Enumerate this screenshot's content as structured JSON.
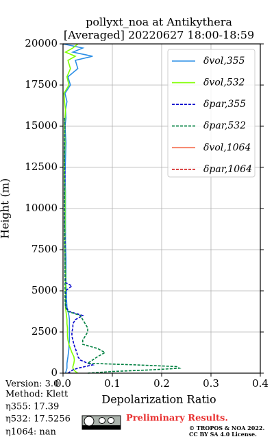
{
  "chart_data": {
    "type": "profile",
    "title": "pollyxt_noa at Antikythera",
    "subtitle": "[Averaged] 20220627 18:00-18:59",
    "x_label": "Depolarization Ratio",
    "y_label": "Height (m)",
    "y": [
      0,
      100,
      200,
      300,
      400,
      500,
      600,
      800,
      1000,
      1250,
      1500,
      1750,
      2000,
      2250,
      2500,
      2750,
      3000,
      3250,
      3500,
      3750,
      4000,
      4500,
      5000,
      5300,
      5500,
      6000,
      7000,
      8000,
      9000,
      10000,
      11000,
      12000,
      13000,
      14000,
      15000,
      15500,
      16000,
      16500,
      17000,
      17500,
      18000,
      18500,
      19000,
      19250,
      19500,
      19750,
      20000
    ],
    "series": [
      {
        "name": "δvol,355",
        "color": "#2a8ee6",
        "dash": false,
        "values": [
          0.005,
          0.006,
          0.007,
          0.008,
          0.008,
          0.008,
          0.008,
          0.009,
          0.01,
          0.011,
          0.012,
          0.012,
          0.013,
          0.013,
          0.013,
          0.013,
          0.013,
          0.013,
          0.012,
          0.01,
          0.008,
          0.007,
          0.007,
          0.006,
          0.006,
          0.006,
          0.006,
          0.005,
          0.005,
          0.005,
          0.005,
          0.004,
          0.005,
          0.006,
          0.004,
          0.006,
          0.005,
          0.008,
          0.004,
          0.015,
          0.01,
          0.03,
          0.025,
          0.06,
          0.02,
          0.04,
          0.0
        ]
      },
      {
        "name": "δvol,532",
        "color": "#80ff00",
        "dash": false,
        "values": [
          0.03,
          0.025,
          0.022,
          0.02,
          0.02,
          0.021,
          0.022,
          0.023,
          0.022,
          0.018,
          0.015,
          0.012,
          0.01,
          0.009,
          0.009,
          0.009,
          0.008,
          0.008,
          0.007,
          0.006,
          0.005,
          0.005,
          0.005,
          0.005,
          0.005,
          0.005,
          0.004,
          0.004,
          0.004,
          0.004,
          0.004,
          0.003,
          0.003,
          0.004,
          0.003,
          0.004,
          0.005,
          0.003,
          0.002,
          0.012,
          0.008,
          0.015,
          0.01,
          0.025,
          0.005,
          0.02,
          0.03
        ]
      },
      {
        "name": "δpar,355",
        "color": "#0000cc",
        "dash": true,
        "values": [
          0.01,
          0.015,
          0.02,
          0.03,
          0.045,
          0.06,
          0.05,
          0.035,
          0.03,
          0.028,
          0.025,
          0.022,
          0.02,
          0.018,
          0.018,
          0.02,
          0.02,
          0.025,
          0.04,
          0.012,
          0.006,
          0.005,
          0.005,
          0.018,
          0.005,
          0.004,
          0.004,
          0.004,
          0.003,
          0.003,
          0.003,
          0.004,
          0.003,
          0.003,
          0.004,
          0.003,
          null,
          null,
          null,
          null,
          null,
          null,
          null,
          null,
          null,
          null,
          null
        ]
      },
      {
        "name": "δpar,532",
        "color": "#008040",
        "dash": true,
        "values": [
          0.05,
          0.1,
          0.18,
          0.236,
          0.23,
          0.15,
          0.05,
          0.06,
          0.07,
          0.085,
          0.07,
          0.04,
          0.04,
          0.045,
          0.05,
          0.05,
          0.045,
          0.04,
          0.035,
          0.01,
          0.005,
          0.004,
          0.004,
          0.004,
          0.004,
          0.004,
          0.004,
          0.003,
          0.003,
          0.003,
          0.003,
          0.003,
          0.003,
          0.003,
          0.004,
          0.003,
          null,
          null,
          null,
          null,
          null,
          null,
          null,
          null,
          null,
          null,
          null
        ]
      },
      {
        "name": "δvol,1064",
        "color": "#f4694a",
        "dash": false,
        "values": [
          null,
          null,
          null,
          null,
          null,
          null,
          null,
          null,
          null,
          null,
          null,
          null,
          null,
          null,
          null,
          null,
          null,
          null,
          null,
          null,
          null,
          null,
          null,
          null,
          null,
          null,
          null,
          null,
          null,
          null,
          null,
          null,
          null,
          null,
          null,
          null,
          null,
          null,
          null,
          null,
          null,
          null,
          null,
          null,
          null,
          null,
          null
        ]
      },
      {
        "name": "δpar,1064",
        "color": "#cc0000",
        "dash": true,
        "values": [
          null,
          null,
          null,
          null,
          null,
          null,
          null,
          null,
          null,
          null,
          null,
          null,
          null,
          null,
          null,
          null,
          null,
          null,
          null,
          null,
          null,
          null,
          null,
          null,
          null,
          null,
          null,
          null,
          null,
          null,
          null,
          null,
          null,
          null,
          null,
          null,
          null,
          null,
          null,
          null,
          null,
          null,
          null,
          null,
          null,
          null,
          null
        ]
      }
    ],
    "xlim": [
      0,
      0.4
    ],
    "xticks": [
      {
        "value": 0,
        "label": "0.0"
      },
      0.1,
      0.2,
      0.3,
      0.4
    ],
    "ylim": [
      0,
      20000
    ],
    "yticks": [
      0,
      2500,
      5000,
      7500,
      10000,
      12500,
      15000,
      17500,
      20000
    ],
    "grid": true,
    "legend": "upper right"
  },
  "notes": [
    "Version: 3.0",
    "Method: Klett",
    "η355:  17.39",
    "η532: 17.5256",
    "η1064:    nan"
  ],
  "badge": "Preliminary Results.",
  "copyright": [
    "© TROPOS & NOA 2022.",
    "CC BY SA 4.0 License."
  ]
}
